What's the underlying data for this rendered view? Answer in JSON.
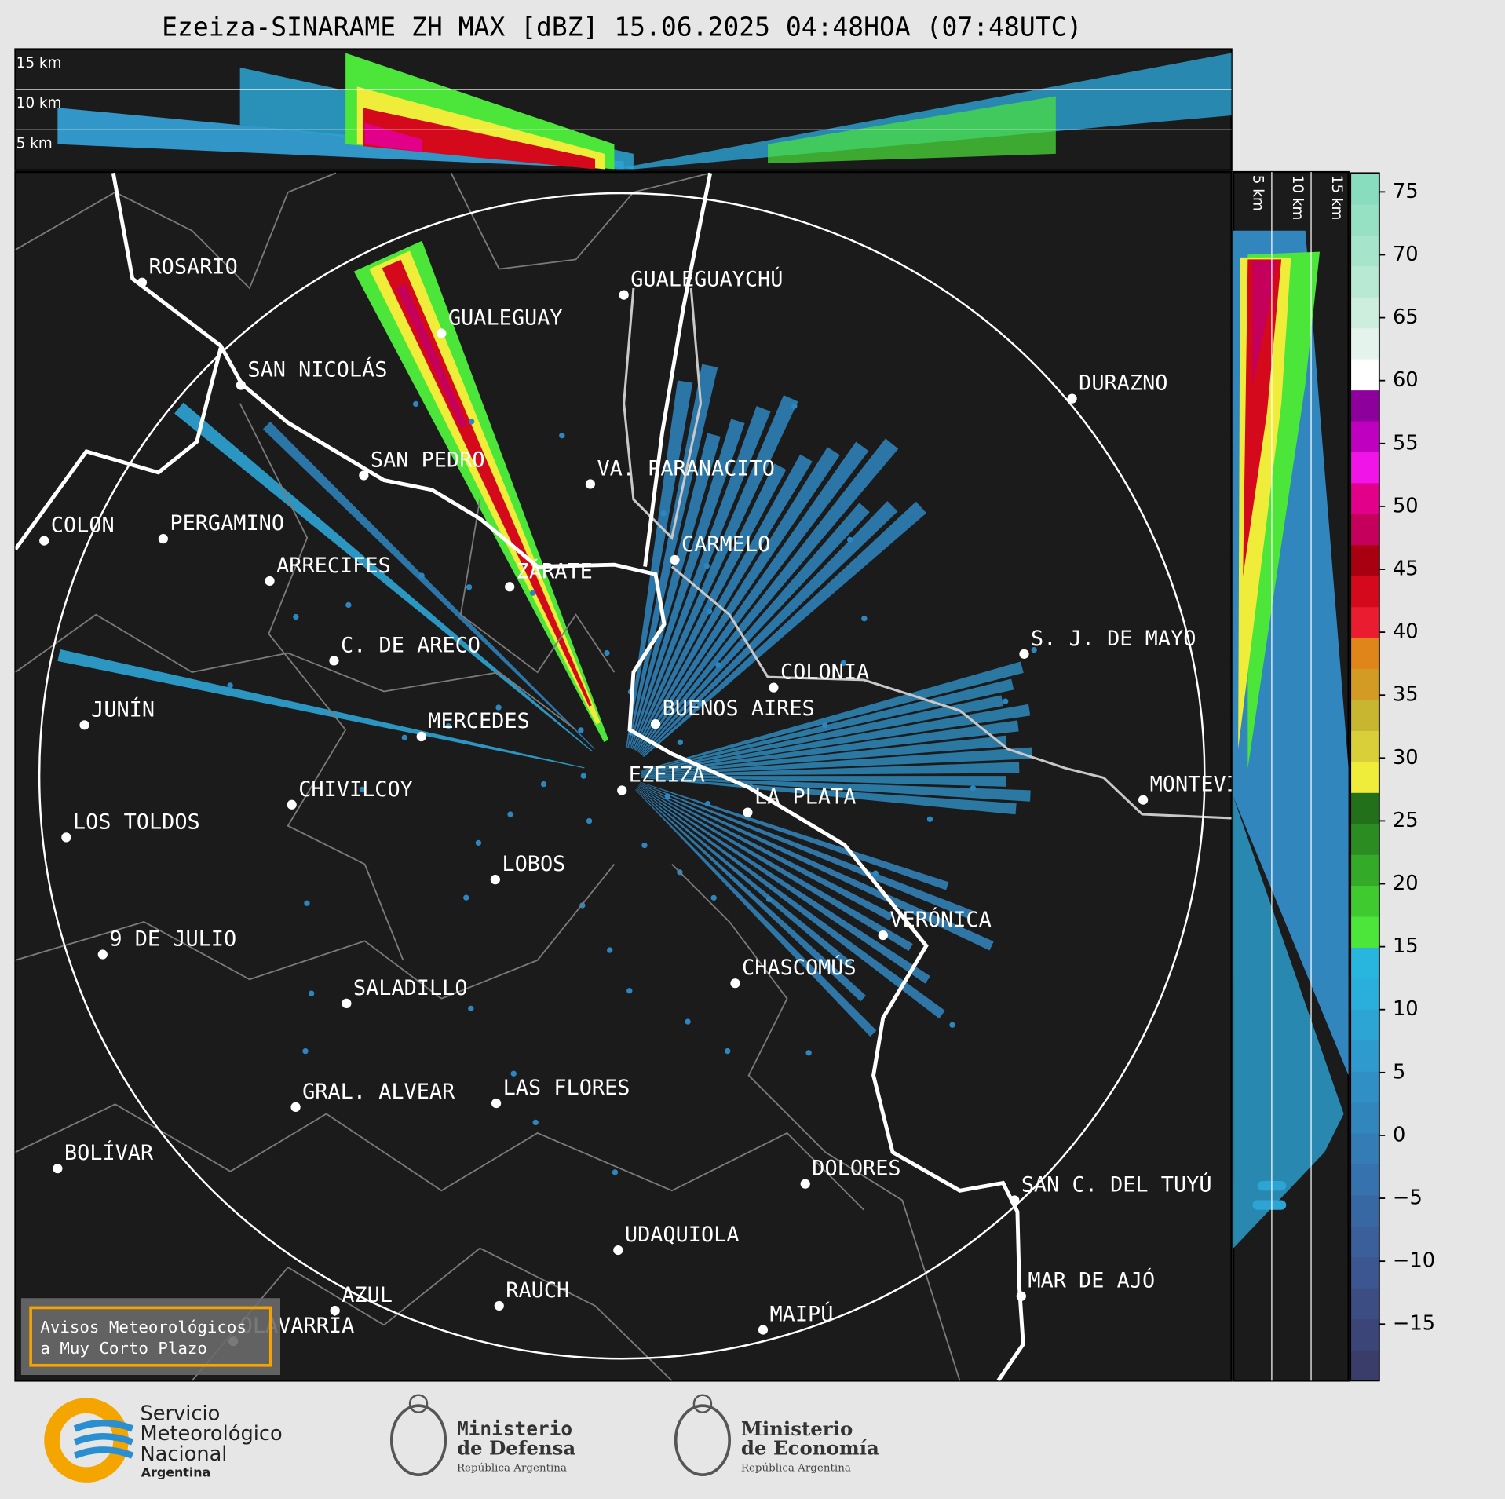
{
  "header": {
    "title": "Ezeiza-SINARAME ZH MAX [dBZ] 15.06.2025 04:48HOA (07:48UTC)"
  },
  "top_panel": {
    "height_labels": [
      "15 km",
      "10 km",
      "5 km"
    ]
  },
  "side_panel": {
    "height_labels": [
      "5 km",
      "10 km",
      "15 km"
    ]
  },
  "map": {
    "cities": [
      "ROSARIO",
      "GUALEGUAYCHÚ",
      "GUALEGUAY",
      "SAN NICOLÁS",
      "DURAZNO",
      "SAN PEDRO",
      "VA. PARANACITO",
      "COLON",
      "PERGAMINO",
      "CARMELO",
      "ARRECIFES",
      "ZÁRATE",
      "C. DE ARECO",
      "S. J. DE MAYO",
      "COLONIA",
      "BUENOS AIRES",
      "JUNÍN",
      "MERCEDES",
      "EZEIZA",
      "MONTEVIDEO",
      "LA PLATA",
      "CHIVILCOY",
      "LOS TOLDOS",
      "LOBOS",
      "VERÓNICA",
      "9 DE JULIO",
      "CHASCOMÚS",
      "SALADILLO",
      "GRAL. ALVEAR",
      "LAS FLORES",
      "BOLÍVAR",
      "DOLORES",
      "SAN C. DEL TUYÚ",
      "UDAQUIOLA",
      "MAR DE AJÓ",
      "RAUCH",
      "OLAVARRÍA",
      "AZUL",
      "MAIPÚ"
    ]
  },
  "notice": {
    "lines": [
      "Avisos Meteorológicos",
      "a Muy Corto Plazo"
    ]
  },
  "colorbar": {
    "lim": [
      -19.5,
      76.5
    ],
    "ticks": [
      75,
      70,
      65,
      60,
      55,
      50,
      45,
      40,
      35,
      30,
      25,
      20,
      15,
      10,
      5,
      0,
      {
        "value": -5,
        "label": "−5"
      },
      {
        "value": -10,
        "label": "−10"
      },
      {
        "value": -15,
        "label": "−15"
      }
    ],
    "colors": [
      "#3a3d6a",
      "#3b4578",
      "#3c4d84",
      "#3b5690",
      "#3a5f9a",
      "#3868a4",
      "#3672ae",
      "#347cb6",
      "#3286be",
      "#3090c6",
      "#2e9acd",
      "#2ca4d4",
      "#2aaedb",
      "#28b6de",
      "#4ce63a",
      "#3fcb30",
      "#34ab28",
      "#2b8c21",
      "#23701b",
      "#f0ec3a",
      "#d9cf38",
      "#c8b530",
      "#d49b24",
      "#df851a",
      "#ea1c30",
      "#d40a1c",
      "#a80010",
      "#c4005c",
      "#e2008a",
      "#f014e8",
      "#c000c0",
      "#8e009c",
      "#ffffff",
      "#e4f4ec",
      "#cdeedd",
      "#b8e9d3",
      "#a6e5cb",
      "#96e1c4",
      "#88ddbe"
    ]
  },
  "footer": {
    "smn": [
      "Servicio",
      "Meteorológico",
      "Nacional",
      "Argentina"
    ],
    "defensa": [
      "Ministerio",
      "de Defensa",
      "República Argentina"
    ],
    "economia": [
      "Ministerio",
      "de Economía",
      "República Argentina"
    ]
  }
}
